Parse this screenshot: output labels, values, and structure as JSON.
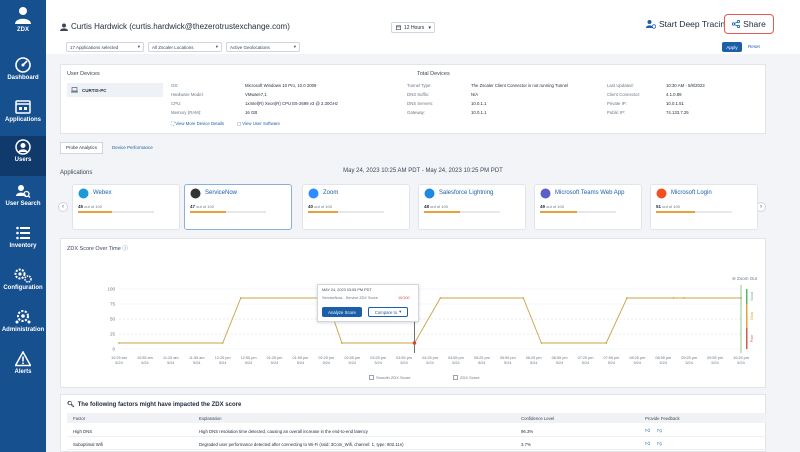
{
  "sidebar": {
    "items": [
      {
        "label": "ZDX",
        "icon": "zdx-icon"
      },
      {
        "label": "Dashboard",
        "icon": "dashboard-icon"
      },
      {
        "label": "Applications",
        "icon": "applications-icon"
      },
      {
        "label": "Users",
        "icon": "users-icon"
      },
      {
        "label": "User Search",
        "icon": "user-search-icon"
      },
      {
        "label": "Inventory",
        "icon": "inventory-icon"
      },
      {
        "label": "Configuration",
        "icon": "configuration-icon"
      },
      {
        "label": "Administration",
        "icon": "administration-icon"
      },
      {
        "label": "Alerts",
        "icon": "alerts-icon"
      }
    ]
  },
  "header": {
    "user": "Curtis Hardwick (curtis.hardwick@thezerotrustexchange.com)",
    "time_range": "12 Hours",
    "deep_tracing_label": "Start Deep Tracing",
    "share_label": "Share"
  },
  "filters": {
    "applications": "17 Applications selected",
    "locations": "All Zscaler Locations",
    "geolocations": "Active Geolocations",
    "apply_label": "Apply",
    "reset_label": "Reset"
  },
  "devices": {
    "title": "User Devices",
    "total_title": "Total Devices",
    "device_name": "CURTIS-PC",
    "os_label": "OS:",
    "os_value": "Microsoft Windows 10 Pro, 10.0 2009",
    "hw_label": "Hardware Model:",
    "hw_value": "VMware7,1",
    "cpu_label": "CPU:",
    "cpu_value": "1xIntel(R) Xeon(R) CPU E5-2699 v3 @ 2.30GHz",
    "mem_label": "Memory (RAM):",
    "mem_value": "16 GB",
    "tunnel_label": "Tunnel Type:",
    "tunnel_value": "The Zscaler Client Connector is not running Tunnel",
    "dns_suffix_label": "DNS Suffix:",
    "dns_suffix_value": "N/A",
    "dns_servers_label": "DNS Servers:",
    "dns_servers_value": "10.0.1.1",
    "gateway_label": "Gateway:",
    "gateway_value": "10.0.1.1",
    "updated_label": "Last Updated:",
    "updated_value": "10:30 AM - 5/8/2023",
    "connector_label": "Client Connector:",
    "connector_value": "4.1.0.89",
    "private_ip_label": "Private IP:",
    "private_ip_value": "10.0.1.51",
    "public_ip_label": "Public IP:",
    "public_ip_value": "74.133.7.25",
    "more_details": "View More Device Details",
    "user_software": "View User Software"
  },
  "tabs": [
    "Probe Analytics",
    "Device Performance"
  ],
  "date_range": "May 24, 2023 10:25 AM PDT - May 24, 2023 10:25 PM PDT",
  "apps_title": "Applications",
  "apps": [
    {
      "name": "Webex",
      "score": 45,
      "logo": "webex-logo-icon",
      "color": "#1a9ad6"
    },
    {
      "name": "ServiceNow",
      "score": 47,
      "logo": "servicenow-logo-icon",
      "color": "#333333"
    },
    {
      "name": "Zoom",
      "score": 40,
      "logo": "zoom-logo-icon",
      "color": "#2d8cff"
    },
    {
      "name": "Salesforce Lightning",
      "score": 48,
      "logo": "salesforce-logo-icon",
      "color": "#1e88e5"
    },
    {
      "name": "Microsoft Teams Web App",
      "score": 49,
      "logo": "teams-logo-icon",
      "color": "#5b5fc7"
    },
    {
      "name": "Microsoft Login",
      "score": 51,
      "logo": "microsoft-logo-icon",
      "color": "#f25022"
    }
  ],
  "score_suffix": "out of 100",
  "chart": {
    "title": "ZDX Score Over Time",
    "zoom_out": "Zoom Out",
    "popup_date": "MAY 24, 2023 03:05 PM PDT",
    "popup_line": "ServiceNow - Service ZDX Score",
    "popup_score": "10/100",
    "analyze_label": "Analyze Score",
    "compare_label": "Compare to",
    "legend_smooth": "Smooth ZDX Score",
    "legend_zdx": "ZDX Score",
    "score_labels": [
      "Good",
      "Okay",
      "Poor"
    ]
  },
  "chart_data": {
    "type": "line",
    "title": "ZDX Score Over Time",
    "y_ticks": [
      0,
      25,
      50,
      75,
      100
    ],
    "ylim": [
      0,
      100
    ],
    "x_labels": [
      "10:25 am 5/24",
      "10:55 am 5/24",
      "11:25 am 5/24",
      "11:55 am 5/24",
      "12:25 pm 5/24",
      "12:55 pm 5/24",
      "01:25 pm 5/24",
      "01:55 pm 5/24",
      "02:25 pm 5/24",
      "02:55 pm 5/24",
      "03:25 pm 5/24",
      "03:55 pm 5/24",
      "04:25 pm 5/24",
      "04:55 pm 5/24",
      "05:25 pm 5/24",
      "05:55 pm 5/24",
      "06:25 pm 5/24",
      "06:55 pm 5/24",
      "07:25 pm 5/24",
      "07:55 pm 5/24",
      "08:25 pm 5/24",
      "08:55 pm 5/24",
      "09:25 pm 5/24",
      "09:55 pm 5/24",
      "10:25 pm 5/24"
    ],
    "series": [
      {
        "x": [
          0,
          4,
          4.7,
          8,
          8.6,
          11.4,
          12.4,
          15.6,
          16.3,
          18.8,
          19.6,
          21.4,
          21.8,
          24
        ],
        "values": [
          10,
          10,
          85,
          85,
          10,
          10,
          85,
          85,
          10,
          10,
          85,
          85,
          85,
          85
        ]
      }
    ],
    "marker_x": 11.4
  },
  "factors": {
    "title": "The following factors might have impacted the ZDX score",
    "headers": [
      "Factor",
      "Explanation",
      "Confidence Level",
      "Provide Feedback"
    ],
    "rows": [
      {
        "factor": "High DNS",
        "explanation": "High DNS resolution time detected, causing an overall increase in the end-to-end latency",
        "confidence": "96.3%"
      },
      {
        "factor": "Suboptimal Wifi",
        "explanation": "Degraded user performance detected after connecting to Wi-Fi (ssid: 3Com_Wifi, channel: 1, type: 802.11n)",
        "confidence": "3.7%"
      }
    ]
  }
}
